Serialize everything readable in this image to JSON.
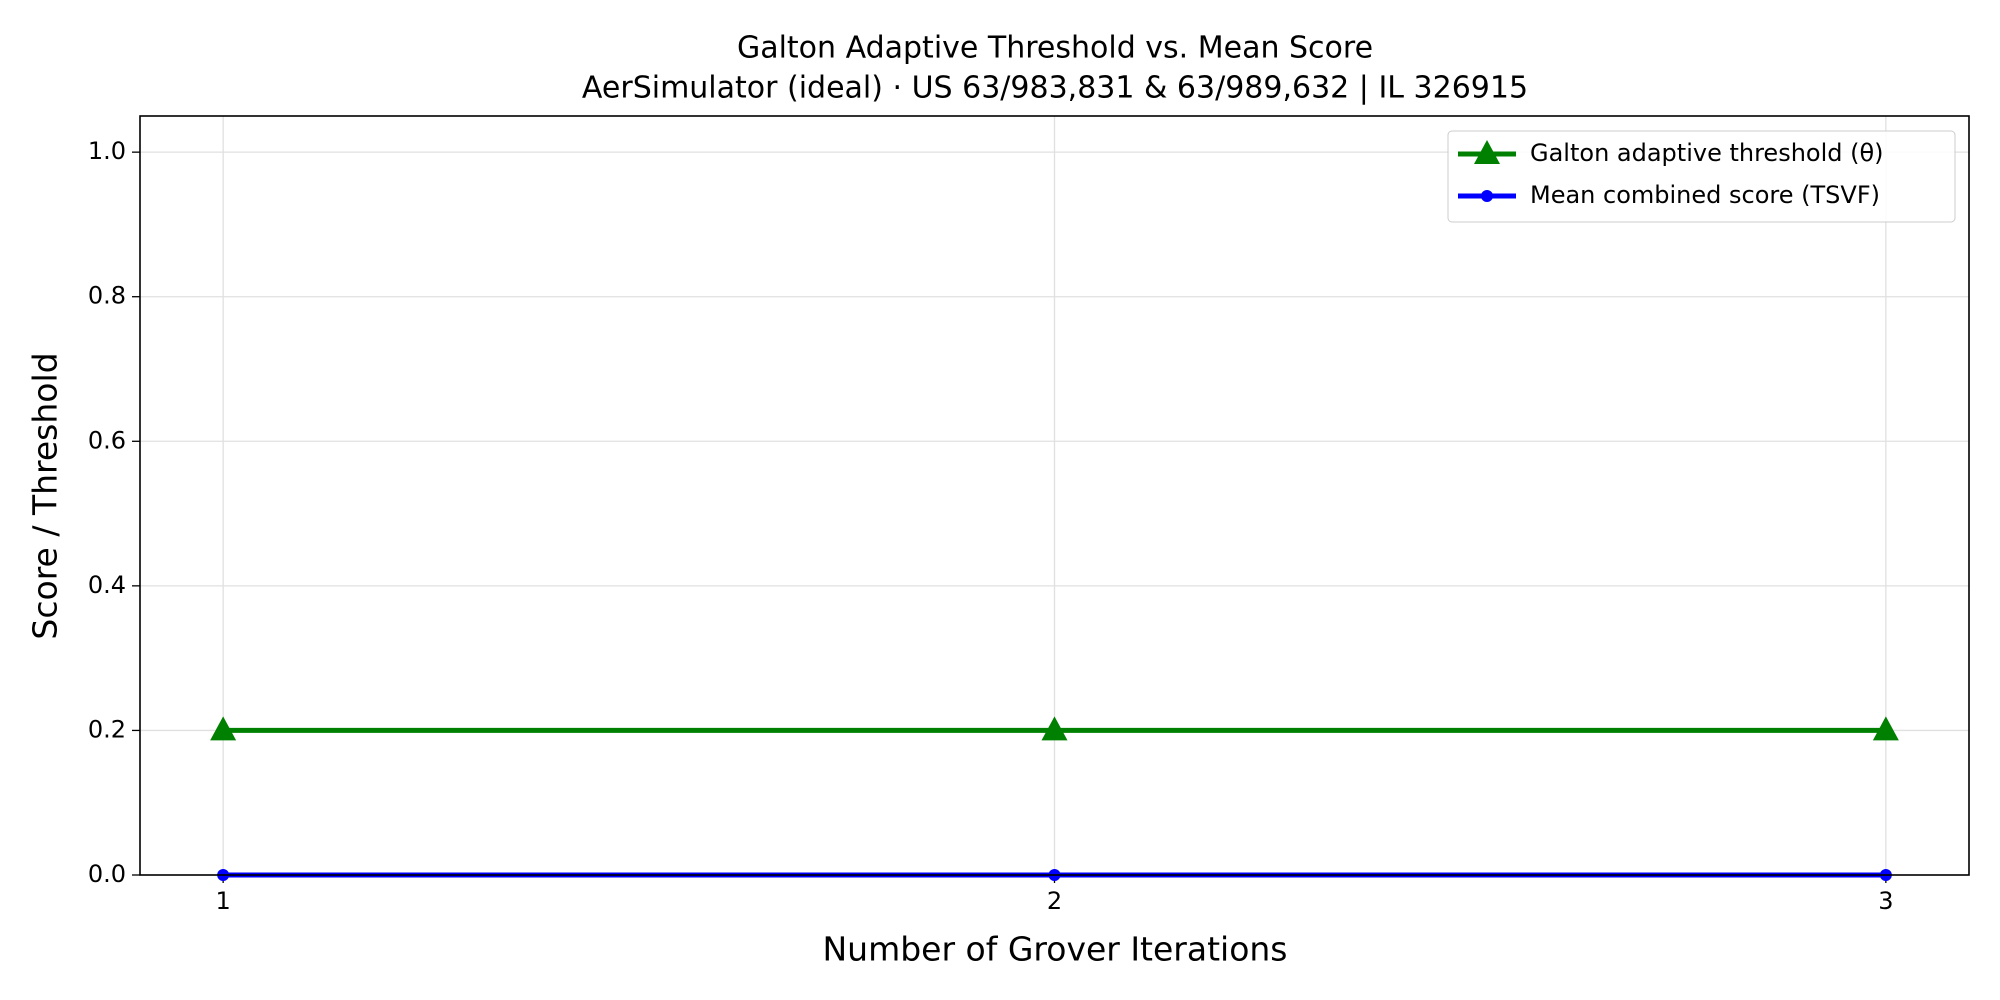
{
  "chart_data": {
    "type": "line",
    "title": "Galton Adaptive Threshold vs. Mean Score",
    "subtitle": "AerSimulator (ideal) · US 63/983,831 & 63/989,632 | IL 326915",
    "x_label": "Number of Grover Iterations",
    "y_label": "Score / Threshold",
    "x": [
      1,
      2,
      3
    ],
    "series": [
      {
        "name": "Galton adaptive threshold (θ)",
        "color": "#008000",
        "marker": "triangle",
        "values": [
          0.2,
          0.2,
          0.2
        ]
      },
      {
        "name": "Mean combined score (TSVF)",
        "color": "#0000ff",
        "marker": "circle",
        "values": [
          0.0,
          0.0,
          0.0
        ]
      }
    ],
    "xlim": [
      0.9,
      3.1
    ],
    "ylim": [
      0,
      1.05
    ],
    "xticks": [
      1,
      2,
      3
    ],
    "yticks": [
      {
        "value": 0,
        "label": "0.0"
      },
      {
        "value": 0.2,
        "label": "0.2"
      },
      {
        "value": 0.4,
        "label": "0.4"
      },
      {
        "value": 0.6,
        "label": "0.6"
      },
      {
        "value": 0.8,
        "label": "0.8"
      },
      {
        "value": 1.0,
        "label": "1.0"
      }
    ],
    "grid": true,
    "legend": "upper right"
  }
}
